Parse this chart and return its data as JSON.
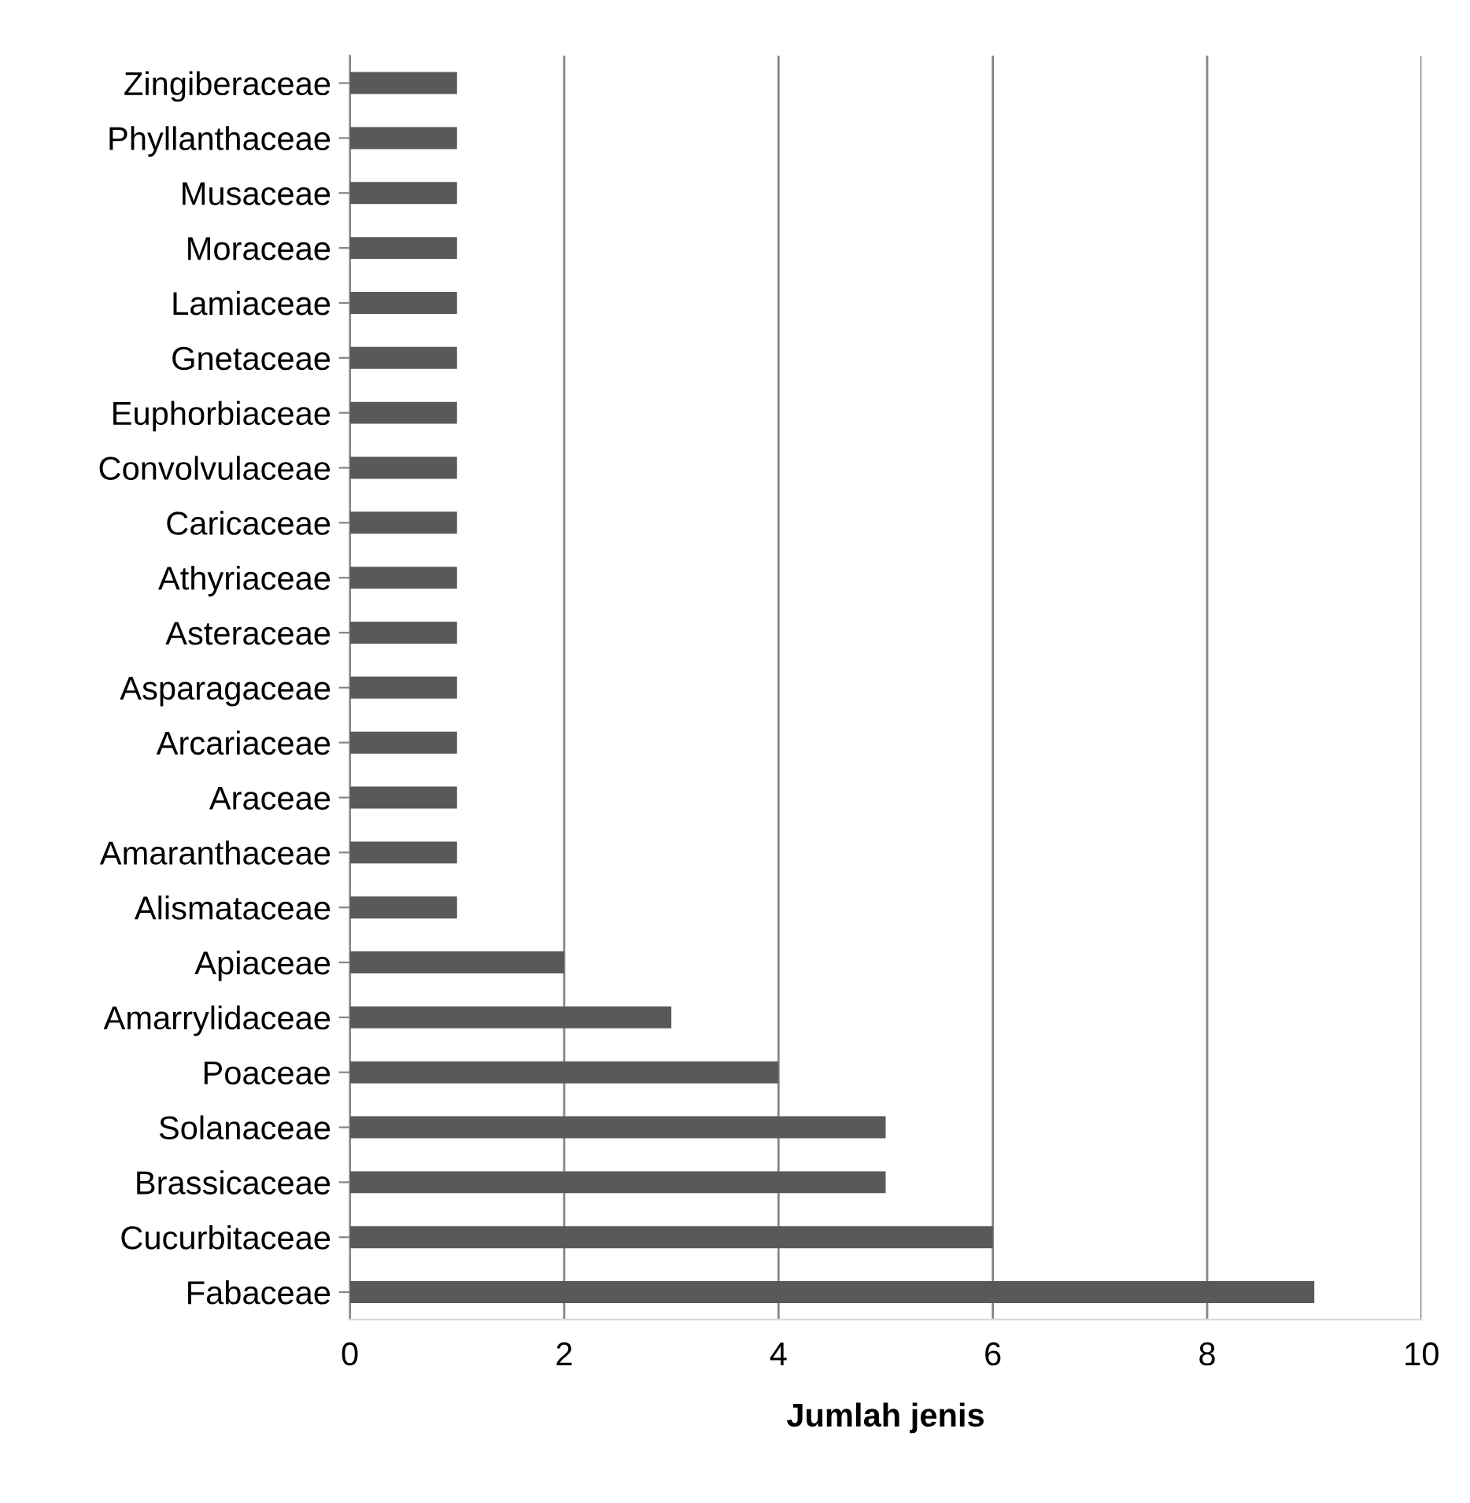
{
  "chart_data": {
    "type": "bar",
    "orientation": "horizontal",
    "xlabel": "Jumlah jenis",
    "categories": [
      "Zingiberaceae",
      "Phyllanthaceae",
      "Musaceae",
      "Moraceae",
      "Lamiaceae",
      "Gnetaceae",
      "Euphorbiaceae",
      "Convolvulaceae",
      "Caricaceae",
      "Athyriaceae",
      "Asteraceae",
      "Asparagaceae",
      "Arcariaceae",
      "Araceae",
      "Amaranthaceae",
      "Alismataceae",
      "Apiaceae",
      "Amarrylidaceae",
      "Poaceae",
      "Solanaceae",
      "Brassicaceae",
      "Cucurbitaceae",
      "Fabaceae"
    ],
    "values": [
      1,
      1,
      1,
      1,
      1,
      1,
      1,
      1,
      1,
      1,
      1,
      1,
      1,
      1,
      1,
      1,
      2,
      3,
      4,
      5,
      5,
      6,
      9
    ],
    "color": "#595959",
    "xlim": [
      0,
      10
    ],
    "xticks": [
      0,
      2,
      4,
      6,
      8,
      10
    ],
    "grid": "x"
  }
}
